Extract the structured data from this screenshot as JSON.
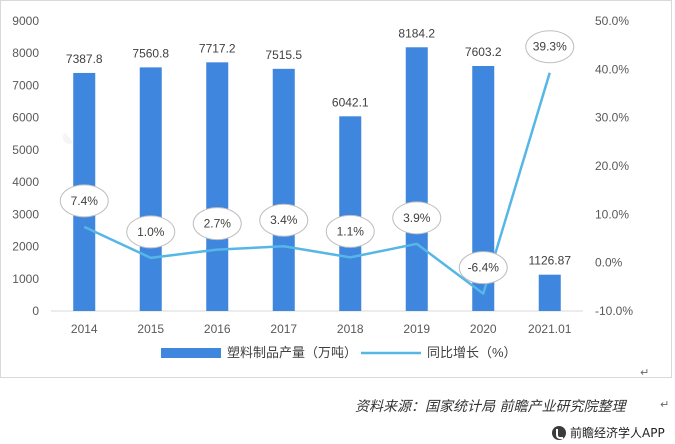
{
  "chart_data": {
    "type": "bar",
    "categories": [
      "2014",
      "2015",
      "2016",
      "2017",
      "2018",
      "2019",
      "2020",
      "2021.01"
    ],
    "series": [
      {
        "name": "塑料制品产量（万吨）",
        "type": "bar",
        "axis": "left",
        "values": [
          7387.8,
          7560.8,
          7717.2,
          7515.5,
          6042.1,
          8184.2,
          7603.2,
          1126.87
        ],
        "labels": [
          "7387.8",
          "7560.8",
          "7717.2",
          "7515.5",
          "6042.1",
          "8184.2",
          "7603.2",
          "1126.87"
        ],
        "color": "#3e86de"
      },
      {
        "name": "同比增长（%）",
        "type": "line",
        "axis": "right",
        "values": [
          7.4,
          1.0,
          2.7,
          3.4,
          1.1,
          3.9,
          -6.4,
          39.3
        ],
        "labels": [
          "7.4%",
          "1.0%",
          "2.7%",
          "3.4%",
          "1.1%",
          "3.9%",
          "-6.4%",
          "39.3%"
        ],
        "color": "#56b7e6"
      }
    ],
    "y_left": {
      "min": 0,
      "max": 9000,
      "step": 1000,
      "ticks": [
        "0",
        "1000",
        "2000",
        "3000",
        "4000",
        "5000",
        "6000",
        "7000",
        "8000",
        "9000"
      ]
    },
    "y_right": {
      "min": -10,
      "max": 50,
      "step": 10,
      "ticks": [
        "-10.0%",
        "0.0%",
        "10.0%",
        "20.0%",
        "30.0%",
        "40.0%",
        "50.0%"
      ]
    },
    "grid": false,
    "legend_position": "bottom"
  },
  "footer": {
    "source": "资料来源：国家统计局  前瞻产业研究院整理",
    "brand": "前瞻经济学人APP"
  }
}
